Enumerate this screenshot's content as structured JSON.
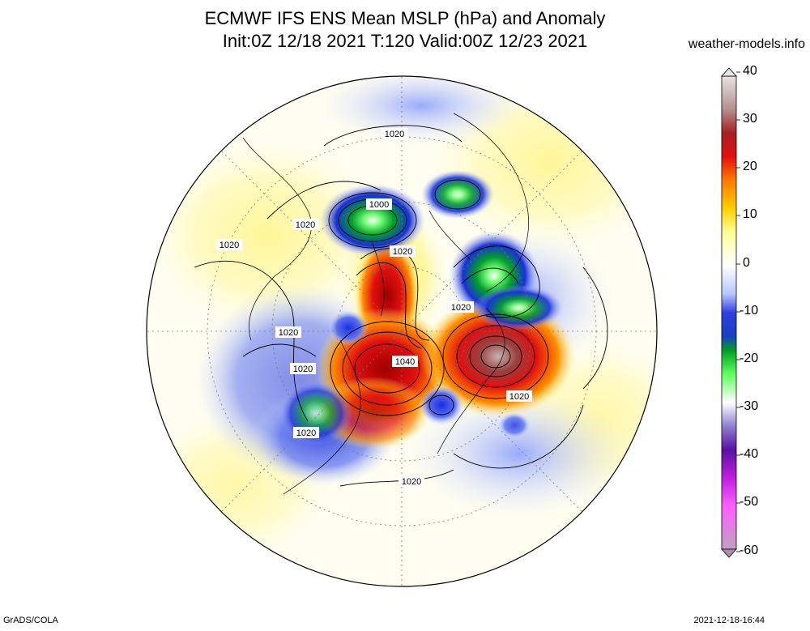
{
  "title": {
    "line1": "ECMWF IFS ENS Mean MSLP (hPa) and Anomaly",
    "line2": "Init:0Z 12/18 2021  T:120 Valid:00Z 12/23 2021"
  },
  "site": "weather-models.info",
  "footer": {
    "left": "GrADS/COLA",
    "right": "2021-12-18-16:44"
  },
  "legend": {
    "ticks": [
      "40",
      "30",
      "20",
      "10",
      "0",
      "-10",
      "-20",
      "-30",
      "-40",
      "-50",
      "-60"
    ],
    "colors_top_to_bottom": [
      "#e8e4e4",
      "#b38f8f",
      "#a52222",
      "#e01010",
      "#ff7a00",
      "#ffd000",
      "#ffff99",
      "#ffffff",
      "#c9d6ff",
      "#2f3fe0",
      "#00a020",
      "#60ff60",
      "#ffffff",
      "#8f7fd0",
      "#5a10a0",
      "#c020e0",
      "#ff60ff",
      "#c0a0c0"
    ]
  },
  "map": {
    "projection": "north-polar-stereographic",
    "contour_labels": [
      {
        "id": "c1020-top",
        "text": "1020"
      },
      {
        "id": "c1000",
        "text": "1000"
      },
      {
        "id": "c1020-greenland",
        "text": "1020"
      },
      {
        "id": "c1020-alaska",
        "text": "1020"
      },
      {
        "id": "c1020-canada",
        "text": "1020"
      },
      {
        "id": "c1020-arctic",
        "text": "1020"
      },
      {
        "id": "c1020-europe",
        "text": "1020"
      },
      {
        "id": "c1040",
        "text": "1040"
      },
      {
        "id": "c1020-west",
        "text": "1020"
      },
      {
        "id": "c1020-asia",
        "text": "1020"
      },
      {
        "id": "c1020-pac",
        "text": "1020"
      },
      {
        "id": "c1020-south",
        "text": "1020"
      }
    ]
  }
}
